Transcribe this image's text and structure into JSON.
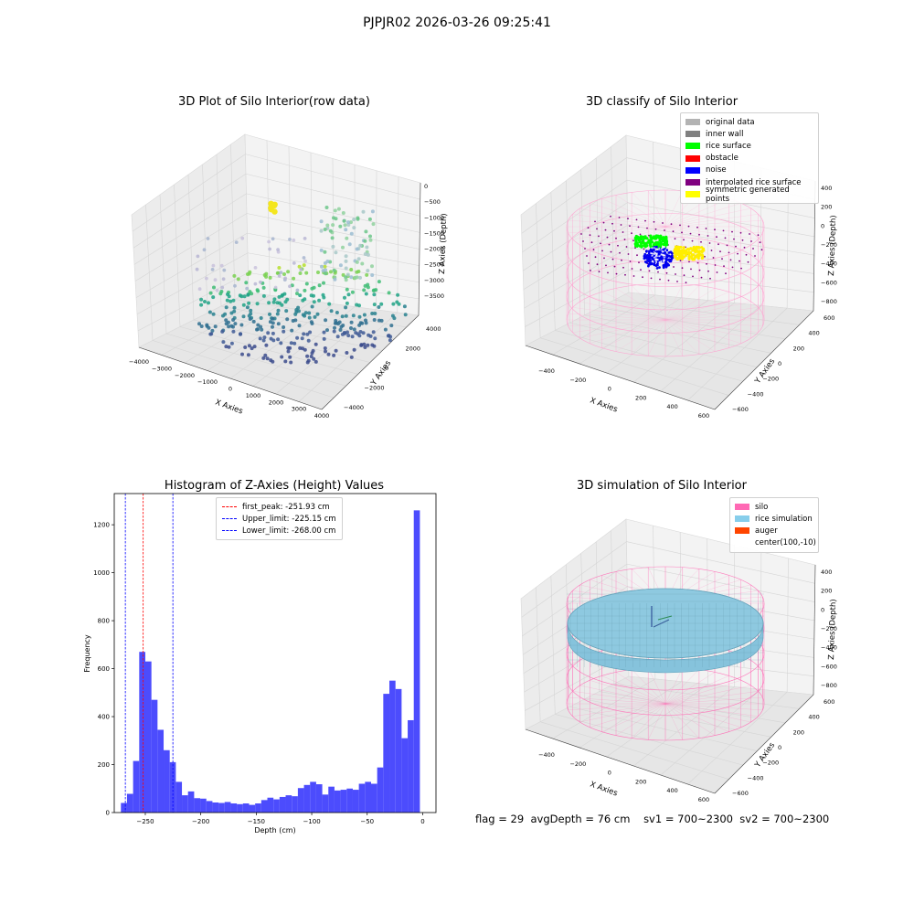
{
  "suptitle": "PJPJR02 2026-03-26 09:25:41",
  "footer": {
    "flag": "flag = 29",
    "avg": "avgDepth = 76 cm",
    "sv1": "sv1 = 700~2300",
    "sv2": "sv2 = 700~2300"
  },
  "panels": {
    "raw": {
      "title": "3D Plot of Silo Interior(row data)",
      "xlabel": "X Axies",
      "ylabel": "Y Axies",
      "zlabel": "Z Axies (Depth)",
      "xticks": [
        "−4000",
        "−3000",
        "−2000",
        "−1000",
        "0",
        "1000",
        "2000",
        "3000",
        "4000"
      ],
      "yticks": [
        "−4000",
        "−2000",
        "0",
        "2000",
        "4000"
      ],
      "zticks": [
        "0",
        "−500",
        "−1000",
        "−1500",
        "−2000",
        "−2500",
        "−3000",
        "−3500"
      ]
    },
    "classify": {
      "title": "3D classify of Silo Interior",
      "xlabel": "X Axies",
      "ylabel": "Y Axies",
      "zlabel": "Z Axies (Depth)",
      "xticks": [
        "−400",
        "−200",
        "0",
        "200",
        "400",
        "600"
      ],
      "yticks": [
        "−600",
        "−400",
        "−200",
        "0",
        "200",
        "400",
        "600"
      ],
      "zticks": [
        "400",
        "200",
        "0",
        "−200",
        "−400",
        "−600",
        "−800"
      ],
      "legend": [
        {
          "label": "original data",
          "color": "#b3b3b3"
        },
        {
          "label": "inner wall",
          "color": "#808080"
        },
        {
          "label": "rice surface",
          "color": "#00ff00"
        },
        {
          "label": "obstacle",
          "color": "#ff0000"
        },
        {
          "label": "noise",
          "color": "#0000ff"
        },
        {
          "label": "interpolated rice surface",
          "color": "#800080"
        },
        {
          "label": "symmetric generated points",
          "color": "#ffff00"
        }
      ]
    },
    "histogram": {
      "title": "Histogram of Z-Axies (Height) Values",
      "xlabel": "Depth (cm)",
      "ylabel": "Frequency",
      "legend": [
        {
          "label": "first_peak: -251.93 cm",
          "color": "#ff0000"
        },
        {
          "label": "Upper_limit: -225.15 cm",
          "color": "#0000ff"
        },
        {
          "label": "Lower_limit: -268.00 cm",
          "color": "#0000ff"
        }
      ]
    },
    "simulation": {
      "title": "3D simulation of Silo Interior",
      "xlabel": "X Axies",
      "ylabel": "Y Axies",
      "zlabel": "Z Axies (Depth)",
      "xticks": [
        "−400",
        "−200",
        "0",
        "200",
        "400",
        "600"
      ],
      "yticks": [
        "−600",
        "−400",
        "−200",
        "0",
        "200",
        "400",
        "600"
      ],
      "zticks": [
        "400",
        "200",
        "0",
        "−200",
        "−400",
        "−600",
        "−800"
      ],
      "legend": [
        {
          "label": "silo",
          "color": "#ff69b4"
        },
        {
          "label": "rice simulation",
          "color": "#87ceeb"
        },
        {
          "label": "auger",
          "color": "#ff4500"
        },
        {
          "label": "center(100,-10)",
          "color": "#ffffff"
        }
      ]
    }
  },
  "chart_data": {
    "type": "bar",
    "title": "Histogram of Z-Axies (Height) Values",
    "xlabel": "Depth (cm)",
    "ylabel": "Frequency",
    "xlim": [
      -278,
      12
    ],
    "ylim": [
      0,
      1330
    ],
    "xticks": [
      -250,
      -200,
      -150,
      -100,
      -50,
      0
    ],
    "yticks": [
      0,
      200,
      400,
      600,
      800,
      1000,
      1200
    ],
    "bin_width": 5.5,
    "bin_start": -272,
    "values": [
      40,
      78,
      215,
      670,
      630,
      470,
      345,
      260,
      210,
      128,
      72,
      88,
      60,
      58,
      48,
      42,
      40,
      44,
      38,
      35,
      38,
      32,
      38,
      52,
      62,
      55,
      65,
      72,
      68,
      102,
      115,
      128,
      118,
      75,
      108,
      92,
      95,
      100,
      95,
      120,
      128,
      120,
      188,
      495,
      550,
      515,
      310,
      385,
      1260
    ],
    "bar_color": "#4c4cfd",
    "vlines": [
      {
        "name": "first_peak: -251.93 cm",
        "x": -251.93,
        "color": "#ff0000"
      },
      {
        "name": "Upper_limit: -225.15 cm",
        "x": -225.15,
        "color": "#0000ff"
      },
      {
        "name": "Lower_limit: -268.00 cm",
        "x": -268.0,
        "color": "#0000ff"
      }
    ]
  }
}
